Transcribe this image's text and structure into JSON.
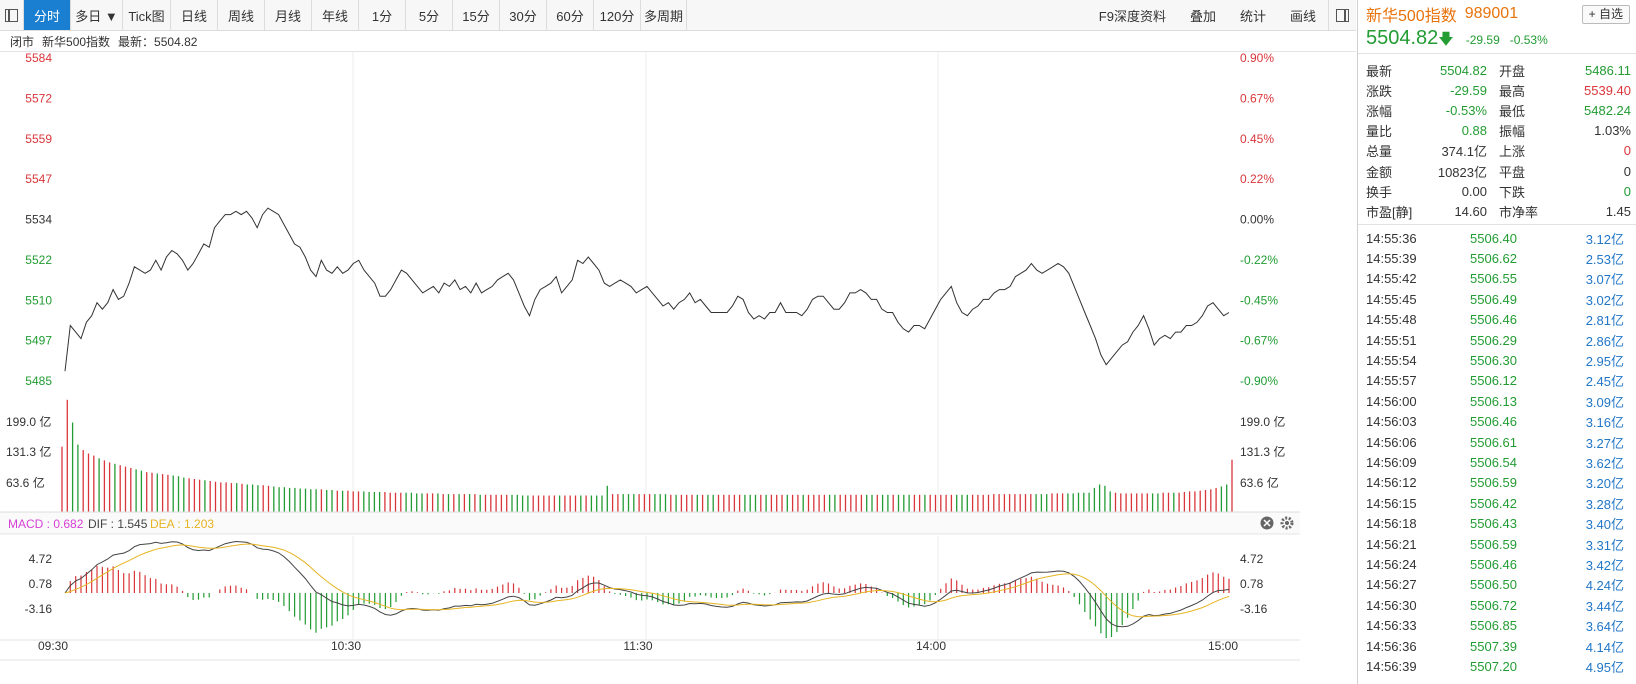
{
  "toolbar": {
    "tabs": [
      "分时",
      "多日 ▼",
      "Tick图",
      "日线",
      "周线",
      "月线",
      "年线",
      "1分",
      "5分",
      "15分",
      "30分",
      "60分",
      "120分",
      "多周期"
    ],
    "active_tab": "分时",
    "right_items": [
      "F9深度资料",
      "叠加",
      "统计",
      "画线"
    ]
  },
  "info_line": {
    "status": "闭市",
    "name": "新华500指数",
    "latest": "最新：5504.82"
  },
  "price_axis": {
    "left": [
      "5584",
      "5572",
      "5559",
      "5547",
      "5534",
      "5522",
      "5510",
      "5497",
      "5485"
    ],
    "right": [
      "0.90%",
      "0.67%",
      "0.45%",
      "0.22%",
      "0.00%",
      "-0.22%",
      "-0.45%",
      "-0.67%",
      "-0.90%"
    ]
  },
  "volume_axis": [
    "199.0 亿",
    "131.3 亿",
    "63.6 亿"
  ],
  "macd_header": {
    "macd": "MACD : 0.682",
    "dif": "DIF : 1.545",
    "dea": "DEA : 1.203"
  },
  "macd_axis": [
    "4.72",
    "0.78",
    "-3.16"
  ],
  "time_axis": [
    "09:30",
    "10:30",
    "11:30",
    "14:00",
    "15:00"
  ],
  "colors": {
    "up": "#d9363b",
    "down": "#229c33",
    "accent": "#1a7fd0",
    "dif": "#444444",
    "dea": "#e6b422",
    "macd": "#d63fd6",
    "title": "#e8730c"
  },
  "chart_data": {
    "type": "line",
    "title": "新华500指数 分时",
    "x": [
      "09:30",
      "10:30",
      "11:30",
      "14:00",
      "15:00"
    ],
    "prev_close": 5534.41,
    "ylim": [
      5485,
      5584
    ],
    "price_series": [
      5488,
      5502,
      5500,
      5498,
      5503,
      5505,
      5509,
      5507,
      5509,
      5513,
      5510,
      5511,
      5515,
      5520,
      5519,
      5518,
      5519,
      5522,
      5519,
      5523,
      5525,
      5524,
      5522,
      5519,
      5521,
      5524,
      5527,
      5526,
      5532,
      5534,
      5536,
      5536,
      5537,
      5536,
      5537,
      5535,
      5532,
      5536,
      5538,
      5537,
      5536,
      5533,
      5530,
      5527,
      5526,
      5523,
      5519,
      5517,
      5522,
      5519,
      5518,
      5520,
      5518,
      5519,
      5521,
      5522,
      5519,
      5517,
      5515,
      5511,
      5511,
      5513,
      5516,
      5519,
      5518,
      5516,
      5514,
      5512,
      5513,
      5514,
      5512,
      5515,
      5514,
      5516,
      5513,
      5514,
      5512,
      5515,
      5512,
      5513,
      5514,
      5516,
      5517,
      5518,
      5516,
      5512,
      5508,
      5505,
      5510,
      5513,
      5514,
      5515,
      5517,
      5512,
      5514,
      5516,
      5522,
      5521,
      5523,
      5521,
      5519,
      5515,
      5514,
      5515,
      5516,
      5515,
      5514,
      5512,
      5513,
      5514,
      5512,
      5510,
      5508,
      5509,
      5507,
      5509,
      5510,
      5512,
      5509,
      5510,
      5508,
      5506,
      5506,
      5506,
      5506,
      5508,
      5511,
      5510,
      5506,
      5504,
      5505,
      5504,
      5506,
      5506,
      5509,
      5506,
      5506,
      5506,
      5505,
      5507,
      5510,
      5511,
      5511,
      5509,
      5507,
      5507,
      5509,
      5512,
      5512,
      5513,
      5512,
      5510,
      5510,
      5507,
      5506,
      5506,
      5503,
      5501,
      5500,
      5502,
      5502,
      5501,
      5504,
      5507,
      5510,
      5512,
      5514,
      5509,
      5506,
      5505,
      5507,
      5508,
      5510,
      5510,
      5512,
      5513,
      5513,
      5514,
      5517,
      5518,
      5519,
      5521,
      5519,
      5518,
      5519,
      5520,
      5521,
      5520,
      5518,
      5514,
      5510,
      5506,
      5502,
      5498,
      5493,
      5490,
      5492,
      5494,
      5496,
      5497,
      5500,
      5502,
      5505,
      5501,
      5496,
      5498,
      5499,
      5498,
      5500,
      5500,
      5502,
      5502,
      5503,
      5505,
      5508,
      5509,
      5507,
      5505,
      5506
    ],
    "volume_series": [
      95,
      163,
      130,
      98,
      90,
      85,
      82,
      78,
      75,
      72,
      70,
      68,
      66,
      64,
      62,
      60,
      58,
      57,
      56,
      55,
      54,
      53,
      52,
      50,
      49,
      48,
      47,
      46,
      45,
      44,
      43,
      43,
      42,
      42,
      41,
      40,
      40,
      39,
      39,
      38,
      37,
      36,
      36,
      35,
      35,
      34,
      34,
      33,
      33,
      33,
      32,
      32,
      31,
      31,
      31,
      30,
      30,
      30,
      29,
      29,
      29,
      29,
      28,
      28,
      28,
      28,
      28,
      27,
      27,
      27,
      27,
      27,
      26,
      26,
      26,
      26,
      26,
      26,
      26,
      25,
      25,
      25,
      25,
      25,
      25,
      25,
      25,
      24,
      24,
      24,
      24,
      24,
      24,
      24,
      24,
      24,
      24,
      24,
      24,
      24,
      24,
      24,
      24,
      38,
      26,
      26,
      26,
      26,
      26,
      26,
      26,
      26,
      26,
      26,
      26,
      25,
      25,
      25,
      25,
      25,
      25,
      25,
      25,
      25,
      25,
      25,
      25,
      25,
      25,
      25,
      25,
      25,
      25,
      25,
      25,
      25,
      25,
      25,
      25,
      25,
      25,
      25,
      25,
      25,
      25,
      25,
      25,
      25,
      25,
      25,
      25,
      25,
      25,
      25,
      25,
      25,
      25,
      25,
      25,
      25,
      25,
      25,
      25,
      25,
      25,
      25,
      25,
      25,
      25,
      25,
      25,
      25,
      25,
      25,
      25,
      25,
      26,
      26,
      26,
      26,
      26,
      26,
      26,
      26,
      26,
      26,
      26,
      27,
      27,
      27,
      27,
      27,
      28,
      28,
      28,
      35,
      40,
      38,
      30,
      28,
      27,
      27,
      27,
      27,
      27,
      27,
      27,
      27,
      28,
      28,
      28,
      28,
      29,
      30,
      30,
      31,
      32,
      33,
      35,
      37,
      40,
      76
    ],
    "macd_ylim": [
      -7.1,
      8.6
    ]
  }
}
